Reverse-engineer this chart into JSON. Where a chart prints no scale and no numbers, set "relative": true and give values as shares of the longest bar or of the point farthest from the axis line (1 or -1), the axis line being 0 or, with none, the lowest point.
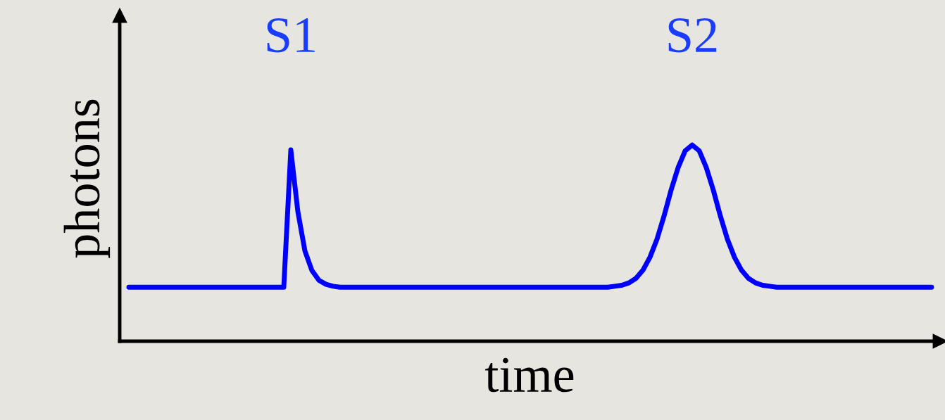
{
  "chart_data": {
    "type": "line",
    "relative": true,
    "xlabel": "time",
    "ylabel": "photons",
    "color": "#0000ff",
    "annotations": [
      "S1",
      "S2"
    ],
    "categories": [
      null,
      null,
      null,
      null,
      null,
      null,
      null,
      null,
      null,
      null,
      null,
      null,
      null,
      null,
      null,
      null,
      null,
      null,
      null,
      null,
      null,
      null,
      null,
      null,
      null,
      null,
      null,
      null,
      null,
      null,
      null,
      null,
      null,
      null,
      null,
      null,
      null,
      null,
      null,
      null,
      null,
      null,
      null,
      null,
      null,
      null,
      null,
      null,
      null,
      null,
      null,
      null,
      null,
      null,
      null,
      null,
      null,
      null,
      null,
      null,
      null,
      null,
      null,
      null,
      null,
      null,
      null,
      null,
      null,
      null,
      null,
      null,
      null,
      null,
      null,
      null,
      null,
      null,
      null,
      null,
      null,
      null,
      null,
      null,
      null,
      null,
      null,
      null,
      null,
      null,
      null,
      null,
      null,
      null,
      null,
      null,
      null,
      null,
      null,
      null,
      null,
      null,
      null,
      null,
      null,
      null,
      null,
      null,
      null,
      null,
      null,
      null,
      null,
      null,
      null
    ],
    "values": [
      0.275,
      0.275,
      0.275,
      0.275,
      0.275,
      0.275,
      0.275,
      0.275,
      0.275,
      0.275,
      0.275,
      0.275,
      0.275,
      0.275,
      0.275,
      0.275,
      0.275,
      0.275,
      0.275,
      0.275,
      0.275,
      0.275,
      0.275,
      0.975,
      0.66,
      0.46,
      0.36,
      0.31,
      0.29,
      0.28,
      0.275,
      0.275,
      0.275,
      0.275,
      0.275,
      0.275,
      0.275,
      0.275,
      0.275,
      0.275,
      0.275,
      0.275,
      0.275,
      0.275,
      0.275,
      0.275,
      0.275,
      0.275,
      0.275,
      0.275,
      0.275,
      0.275,
      0.275,
      0.275,
      0.275,
      0.275,
      0.275,
      0.275,
      0.275,
      0.275,
      0.275,
      0.275,
      0.275,
      0.275,
      0.275,
      0.275,
      0.275,
      0.275,
      0.275,
      0.28,
      0.285,
      0.297,
      0.32,
      0.362,
      0.428,
      0.52,
      0.638,
      0.77,
      0.885,
      0.97,
      1.0,
      0.97,
      0.885,
      0.77,
      0.638,
      0.52,
      0.428,
      0.362,
      0.32,
      0.297,
      0.285,
      0.28,
      0.275,
      0.275,
      0.275,
      0.275,
      0.275,
      0.275,
      0.275,
      0.275,
      0.275,
      0.275,
      0.275,
      0.275,
      0.275,
      0.275,
      0.275,
      0.275,
      0.275,
      0.275,
      0.275,
      0.275,
      0.275,
      0.275,
      0.275
    ]
  }
}
